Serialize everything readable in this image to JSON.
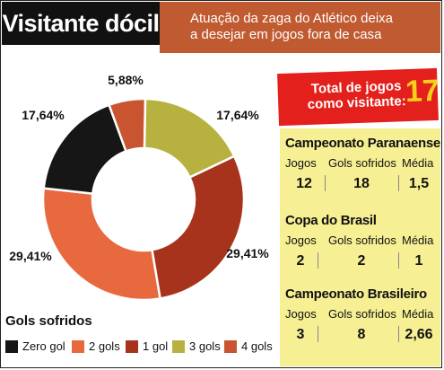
{
  "header": {
    "title": "Visitante dócil",
    "subtitle_line1": "Atuação da zaga do Atlético deixa",
    "subtitle_line2": "a desejar em jogos fora de casa"
  },
  "total": {
    "label_line1": "Total de jogos",
    "label_line2": "como visitante:",
    "value": "17"
  },
  "competitions": [
    {
      "name": "Campeonato Paranaense",
      "headers": [
        "Jogos",
        "Gols sofridos",
        "Média"
      ],
      "values": [
        "12",
        "18",
        "1,5"
      ]
    },
    {
      "name": "Copa do Brasil",
      "headers": [
        "Jogos",
        "Gols sofridos",
        "Média"
      ],
      "values": [
        "2",
        "2",
        "1"
      ]
    },
    {
      "name": "Campeonato Brasileiro",
      "headers": [
        "Jogos",
        "Gols sofridos",
        "Média"
      ],
      "values": [
        "3",
        "8",
        "2,66"
      ]
    }
  ],
  "chart_data": {
    "type": "pie",
    "donut": true,
    "legend_title": "Gols sofridos",
    "legend_position": "bottom-left",
    "slices": [
      {
        "name": "Zero gol",
        "value": 17.64,
        "label": "17,64%",
        "color": "#161616"
      },
      {
        "name": "2 gols",
        "value": 29.41,
        "label": "29,41%",
        "color": "#e8693e"
      },
      {
        "name": "1 gol",
        "value": 29.41,
        "label": "29,41%",
        "color": "#a8331c"
      },
      {
        "name": "3 gols",
        "value": 17.64,
        "label": "17,64%",
        "color": "#b7b240"
      },
      {
        "name": "4 gols",
        "value": 5.88,
        "label": "5,88%",
        "color": "#c85530"
      }
    ]
  }
}
